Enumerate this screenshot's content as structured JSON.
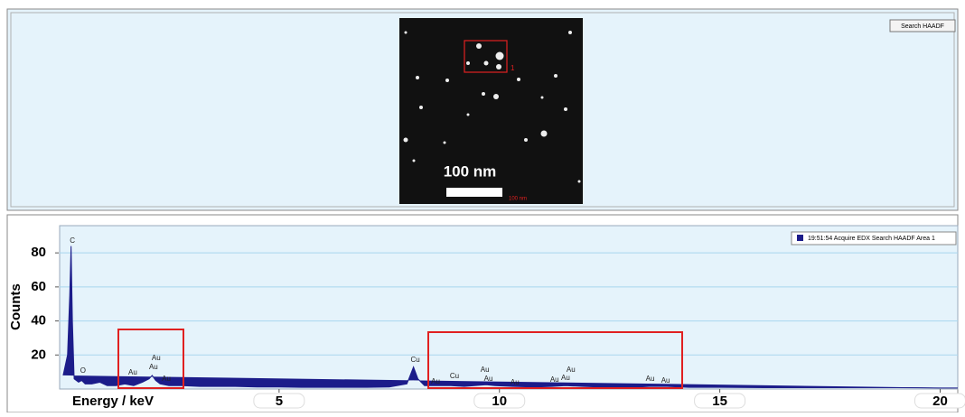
{
  "image_panel": {
    "button": "Search HAADF",
    "area_label": "1",
    "scale_label": "100 nm",
    "scale_label_small": "100 nm"
  },
  "chart_data": {
    "type": "area",
    "x_label": "Energy / keV",
    "y_label": "Counts",
    "xlim": [
      0,
      20.4
    ],
    "ylim": [
      0,
      96
    ],
    "xticks": [
      5,
      10,
      15,
      20
    ],
    "yticks": [
      20,
      40,
      60,
      80
    ],
    "grid": true,
    "legend": "top-right",
    "x": [
      0.1,
      0.2,
      0.25,
      0.28,
      0.31,
      0.35,
      0.45,
      0.52,
      0.6,
      0.75,
      0.93,
      1.1,
      1.3,
      1.5,
      1.7,
      1.9,
      2.05,
      2.12,
      2.2,
      2.3,
      2.5,
      2.8,
      3.2,
      3.6,
      4.0,
      4.5,
      5.0,
      5.5,
      6.0,
      6.5,
      7.0,
      7.5,
      7.9,
      8.05,
      8.15,
      8.3,
      8.6,
      8.9,
      9.2,
      9.7,
      9.9,
      10.3,
      10.8,
      11.2,
      11.5,
      11.9,
      12.5,
      13.0,
      13.4,
      13.8,
      14.3,
      15,
      16,
      17,
      18,
      19,
      20,
      20.4
    ],
    "series": [
      {
        "name": "19:51:54 Acquire EDX Search HAADF Area 1",
        "color": "#1c1c8a",
        "values": [
          8,
          20,
          55,
          84,
          40,
          6,
          4,
          5,
          3,
          3,
          4,
          2,
          2,
          3,
          2,
          4,
          6,
          8,
          5,
          3,
          2,
          2,
          1.5,
          1.5,
          1.5,
          1.2,
          1.2,
          1,
          1,
          1,
          1,
          1.2,
          3,
          13,
          6,
          2,
          2,
          2,
          1.5,
          2.5,
          2,
          1.5,
          1.2,
          1.5,
          2,
          1.5,
          1,
          1,
          1.5,
          1.5,
          1,
          1,
          0.8,
          0.8,
          0.8,
          0.8,
          0.6,
          0.6
        ]
      }
    ],
    "annotations": [
      {
        "label": "C",
        "x": 0.31,
        "y": 87
      },
      {
        "label": "O",
        "x": 0.55,
        "y": 10.7
      },
      {
        "label": "Au",
        "x": 1.68,
        "y": 9.6
      },
      {
        "label": "Au",
        "x": 2.21,
        "y": 18
      },
      {
        "label": "Au",
        "x": 2.15,
        "y": 12.8
      },
      {
        "label": "Au",
        "x": 2.44,
        "y": 5.9
      },
      {
        "label": "Cu",
        "x": 8.09,
        "y": 17
      },
      {
        "label": "Au",
        "x": 8.55,
        "y": 4.3
      },
      {
        "label": "Cu",
        "x": 8.98,
        "y": 7.5
      },
      {
        "label": "Au",
        "x": 9.67,
        "y": 11.2
      },
      {
        "label": "Au",
        "x": 9.75,
        "y": 5.9
      },
      {
        "label": "Au",
        "x": 10.35,
        "y": 3.7
      },
      {
        "label": "Au",
        "x": 11.25,
        "y": 5.3
      },
      {
        "label": "Au",
        "x": 11.5,
        "y": 6.4
      },
      {
        "label": "Au",
        "x": 11.62,
        "y": 11.2
      },
      {
        "label": "Au",
        "x": 13.42,
        "y": 5.9
      },
      {
        "label": "Au",
        "x": 13.77,
        "y": 4.8
      }
    ]
  }
}
